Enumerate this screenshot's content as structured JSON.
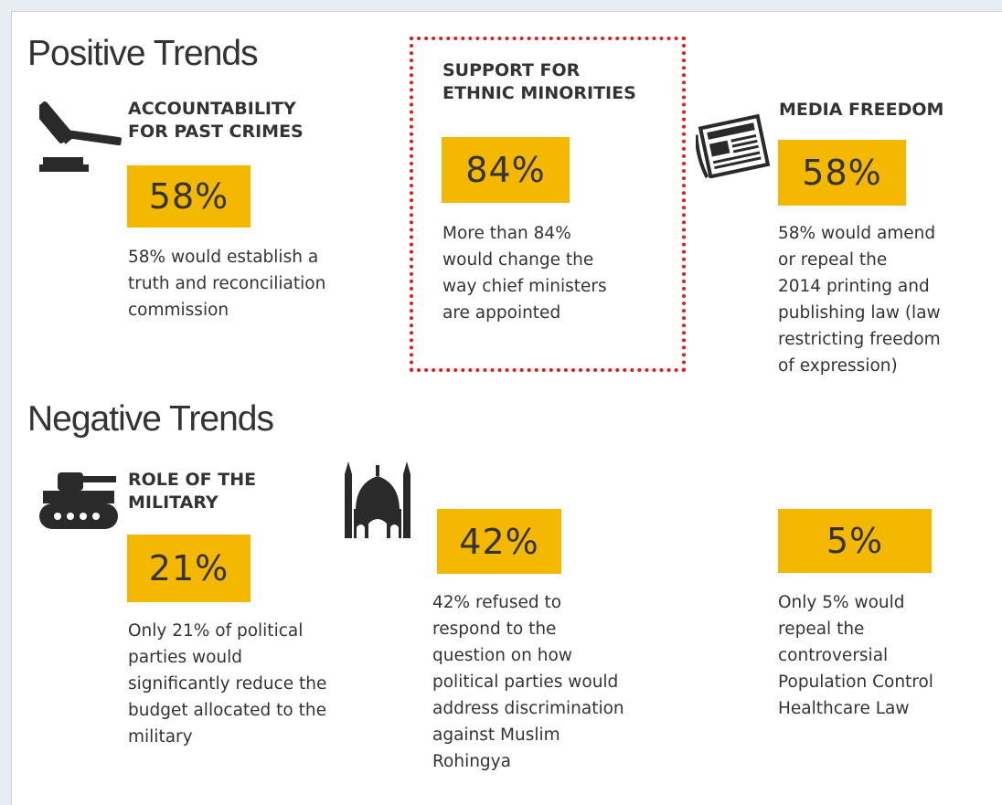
{
  "positive": {
    "title": "Positive Trends",
    "cards": [
      {
        "heading": "ACCOUNTABILITY\nFOR PAST CRIMES",
        "pct": "58%",
        "text": "58% would establish a\ntruth and reconciliation\ncommission",
        "icon": "gavel-icon"
      },
      {
        "heading": "SUPPORT FOR\nETHNIC MINORITIES",
        "pct": "84%",
        "text": "More than 84%\nwould change the\nway chief ministers\nare appointed",
        "highlighted": true
      },
      {
        "heading": "MEDIA FREEDOM",
        "pct": "58%",
        "text": "58% would amend\nor repeal the\n2014 printing and\npublishing law (law\nrestricting freedom\nof expression)",
        "icon": "newspaper-icon"
      }
    ]
  },
  "negative": {
    "title": "Negative Trends",
    "cards": [
      {
        "heading": "ROLE OF THE\nMILITARY",
        "pct": "21%",
        "text": "Only 21% of political\nparties would\nsignificantly reduce the\nbudget allocated to the\nmilitary",
        "icon": "tank-icon"
      },
      {
        "heading": "",
        "pct": "42%",
        "text": "42% refused to\nrespond to the\nquestion on how\npolitical parties would\naddress discrimination\nagainst Muslim\nRohingya",
        "icon": "mosque-icon"
      },
      {
        "heading": "",
        "pct": "5%",
        "text": "Only 5% would\nrepeal the\ncontroversial\nPopulation Control\nHealthcare Law"
      }
    ]
  },
  "colors": {
    "accent": "#f5b800",
    "highlight_border": "#e21b1b",
    "text": "#333333"
  }
}
